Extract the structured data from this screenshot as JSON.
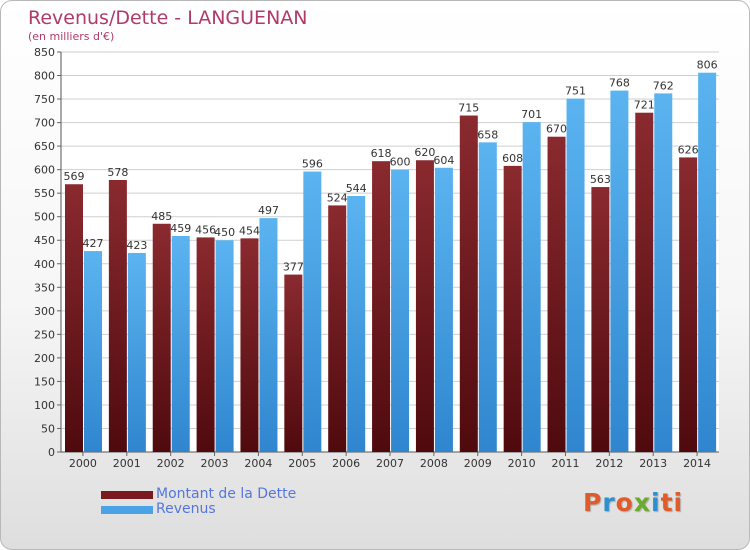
{
  "colors": {
    "debt": "#7a1a1f",
    "revenue": "#4aa3e6",
    "title": "#b03a6a",
    "legend_text": "#5577dd",
    "grid": "#cfcfcf",
    "logo": [
      "#e05a2a",
      "#2d8fd0",
      "#e05a2a",
      "#6aab2e",
      "#2d8fd0",
      "#e05a2a"
    ]
  },
  "title": "Revenus/Dette - LANGUENAN",
  "subtitle": "(en milliers d'€)",
  "legend": {
    "debt_label": "Montant de la Dette",
    "revenue_label": "Revenus"
  },
  "logo": {
    "text": "Proxiti",
    "letters": [
      "P",
      "r",
      "o",
      "x",
      "i",
      "t",
      "i"
    ]
  },
  "chart_data": {
    "type": "bar",
    "categories": [
      "2000",
      "2001",
      "2002",
      "2003",
      "2004",
      "2005",
      "2006",
      "2007",
      "2008",
      "2009",
      "2010",
      "2011",
      "2012",
      "2013",
      "2014"
    ],
    "series": [
      {
        "name": "Montant de la Dette",
        "values": [
          569,
          578,
          485,
          456,
          454,
          377,
          524,
          618,
          620,
          715,
          608,
          670,
          563,
          721,
          626
        ]
      },
      {
        "name": "Revenus",
        "values": [
          427,
          423,
          459,
          450,
          497,
          596,
          544,
          600,
          604,
          658,
          701,
          751,
          768,
          762,
          806
        ]
      }
    ],
    "ylim": [
      0,
      850
    ],
    "yticks": [
      0,
      50,
      100,
      150,
      200,
      250,
      300,
      350,
      400,
      450,
      500,
      550,
      600,
      650,
      700,
      750,
      800,
      850
    ],
    "grid": true,
    "legend_position": "bottom-left"
  }
}
